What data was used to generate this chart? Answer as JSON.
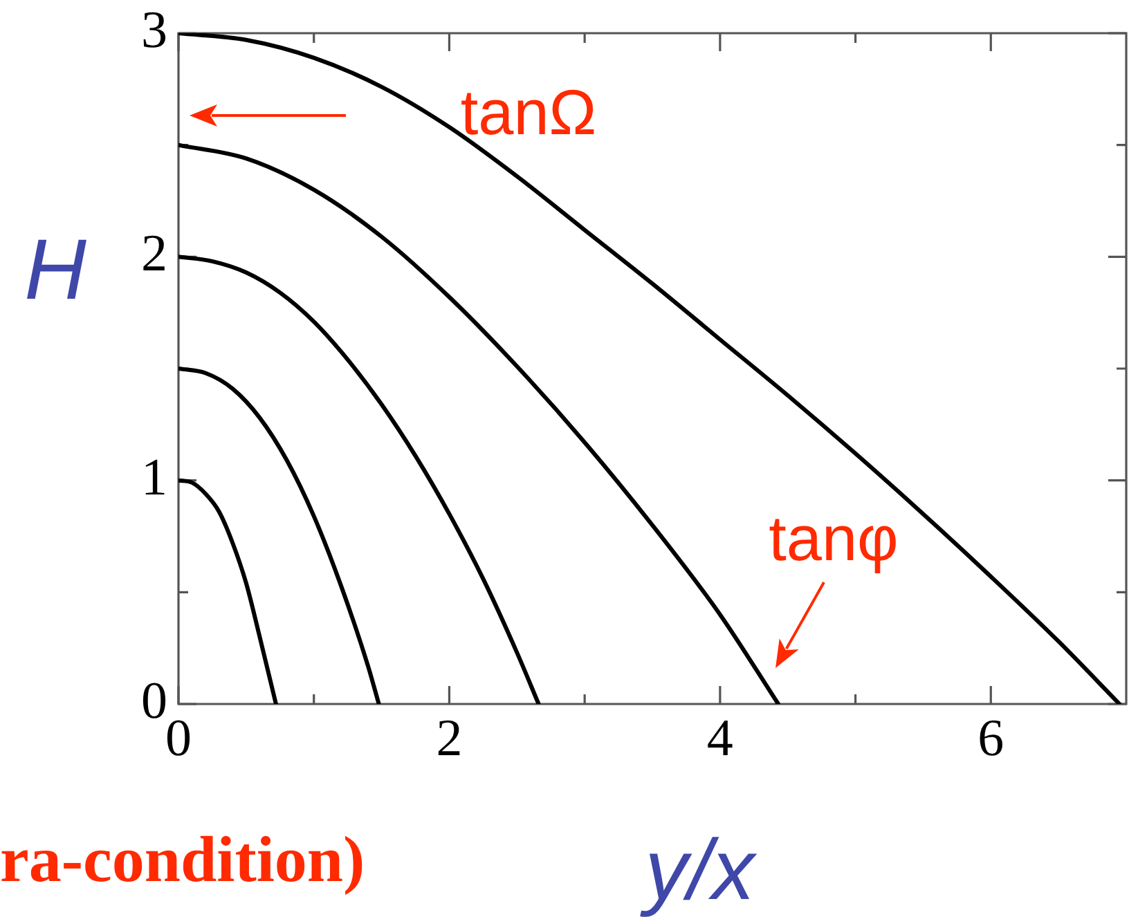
{
  "chart_data": {
    "type": "line",
    "xlabel": "y/x",
    "ylabel": "H",
    "series": [
      {
        "color": "#000000",
        "x": [
          0,
          0.1,
          0.2,
          0.3,
          0.4,
          0.5,
          0.6,
          0.72
        ],
        "values": [
          1,
          0.99,
          0.94,
          0.86,
          0.72,
          0.54,
          0.3,
          0
        ]
      },
      {
        "color": "#000000",
        "x": [
          0,
          0.2,
          0.4,
          0.6,
          0.8,
          1.0,
          1.2,
          1.4,
          1.48
        ],
        "values": [
          1.5,
          1.48,
          1.41,
          1.28,
          1.09,
          0.84,
          0.53,
          0.17,
          0
        ]
      },
      {
        "color": "#000000",
        "x": [
          0,
          0.25,
          0.5,
          0.75,
          1,
          1.25,
          1.5,
          1.75,
          2,
          2.25,
          2.5,
          2.66
        ],
        "values": [
          2,
          1.98,
          1.93,
          1.84,
          1.71,
          1.54,
          1.34,
          1.11,
          0.85,
          0.56,
          0.23,
          0
        ]
      },
      {
        "color": "#000000",
        "x": [
          0,
          0.5,
          1,
          1.5,
          2,
          2.5,
          3,
          3.5,
          4,
          4.43
        ],
        "values": [
          2.5,
          2.44,
          2.3,
          2.09,
          1.82,
          1.51,
          1.17,
          0.8,
          0.4,
          0
        ]
      },
      {
        "color": "#000000",
        "x": [
          0,
          0.5,
          1,
          1.5,
          2,
          2.5,
          3,
          3.5,
          4,
          4.5,
          5,
          5.5,
          6,
          6.5,
          6.95
        ],
        "values": [
          3,
          2.97,
          2.89,
          2.76,
          2.58,
          2.36,
          2.12,
          1.88,
          1.63,
          1.38,
          1.12,
          0.85,
          0.57,
          0.28,
          0
        ]
      }
    ],
    "xlim": [
      0,
      7
    ],
    "ylim": [
      0,
      3
    ],
    "xticks": [
      0,
      {
        "value": 1,
        "label": null
      },
      2,
      {
        "value": 3,
        "label": null
      },
      4,
      {
        "value": 5,
        "label": null
      },
      6
    ],
    "yticks": [
      0,
      {
        "value": 0.5,
        "label": null
      },
      1,
      {
        "value": 1.5,
        "label": null
      },
      2,
      {
        "value": 2.5,
        "label": null
      },
      3
    ],
    "annotations": [
      "tanΩ",
      {
        "text": "tanφ",
        "x": 4.43,
        "y": 0
      },
      "ra-condition)"
    ],
    "grid": false,
    "legend": false,
    "line_style": "solid"
  }
}
